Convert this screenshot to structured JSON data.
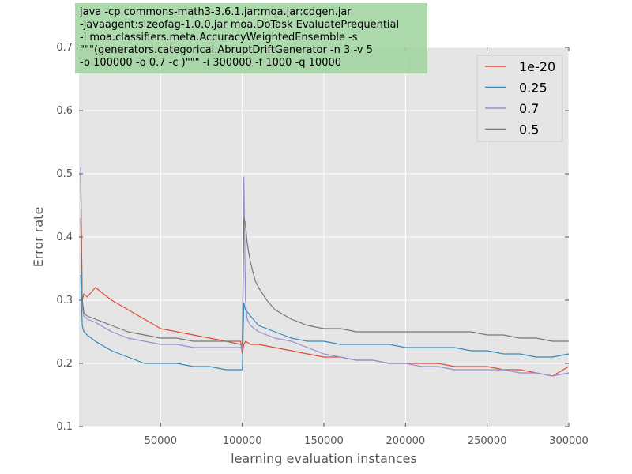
{
  "chart_data": {
    "type": "line",
    "xlabel": "learning evaluation instances",
    "ylabel": "Error rate",
    "xlim": [
      0,
      300000
    ],
    "ylim": [
      0.1,
      0.7
    ],
    "xticks": [
      50000,
      100000,
      150000,
      200000,
      250000,
      300000
    ],
    "yticks": [
      0.1,
      0.2,
      0.3,
      0.4,
      0.5,
      0.6,
      0.7
    ],
    "grid": true,
    "legend_position": "top-right",
    "annotation": [
      "java -cp commons-math3-3.6.1.jar:moa.jar:cdgen.jar",
      "-javaagent:sizeofag-1.0.0.jar moa.DoTask EvaluatePrequential",
      "-l moa.classifiers.meta.AccuracyWeightedEnsemble  -s",
      "\"\"\"(generators.categorical.AbruptDriftGenerator  -n 3 -v 5",
      "-b 100000  -o 0.7  -c  )\"\"\"   -i 300000  -f 1000 -q 10000"
    ],
    "colors": {
      "background": "#e5e5e5",
      "grid": "#ffffff",
      "annotation_box": "#9fd49f"
    },
    "series": [
      {
        "name": "1e-20",
        "color": "#e24a33",
        "x": [
          1000,
          2000,
          3000,
          5000,
          10000,
          15000,
          20000,
          30000,
          40000,
          50000,
          60000,
          70000,
          80000,
          90000,
          99000,
          100000,
          101000,
          102000,
          105000,
          110000,
          120000,
          130000,
          140000,
          150000,
          160000,
          170000,
          180000,
          190000,
          200000,
          210000,
          220000,
          230000,
          240000,
          250000,
          260000,
          270000,
          280000,
          290000,
          300000
        ],
        "y": [
          0.43,
          0.3,
          0.31,
          0.305,
          0.32,
          0.31,
          0.3,
          0.285,
          0.27,
          0.255,
          0.25,
          0.245,
          0.24,
          0.235,
          0.235,
          0.215,
          0.23,
          0.235,
          0.23,
          0.23,
          0.225,
          0.22,
          0.215,
          0.21,
          0.21,
          0.205,
          0.205,
          0.2,
          0.2,
          0.2,
          0.2,
          0.195,
          0.195,
          0.195,
          0.19,
          0.19,
          0.185,
          0.18,
          0.195
        ]
      },
      {
        "name": "0.25",
        "color": "#348abd",
        "x": [
          1000,
          2000,
          3000,
          5000,
          10000,
          20000,
          30000,
          40000,
          50000,
          60000,
          70000,
          80000,
          90000,
          99000,
          100000,
          101000,
          102000,
          105000,
          110000,
          120000,
          130000,
          140000,
          150000,
          160000,
          170000,
          180000,
          190000,
          200000,
          210000,
          220000,
          230000,
          240000,
          250000,
          260000,
          270000,
          280000,
          290000,
          300000
        ],
        "y": [
          0.34,
          0.26,
          0.25,
          0.245,
          0.235,
          0.22,
          0.21,
          0.2,
          0.2,
          0.2,
          0.195,
          0.195,
          0.19,
          0.19,
          0.19,
          0.295,
          0.285,
          0.275,
          0.26,
          0.25,
          0.24,
          0.235,
          0.235,
          0.23,
          0.23,
          0.23,
          0.23,
          0.225,
          0.225,
          0.225,
          0.225,
          0.22,
          0.22,
          0.215,
          0.215,
          0.21,
          0.21,
          0.215
        ]
      },
      {
        "name": "0.7",
        "color": "#988ed5",
        "x": [
          1000,
          2000,
          3000,
          5000,
          10000,
          20000,
          30000,
          40000,
          50000,
          60000,
          70000,
          80000,
          90000,
          99000,
          100000,
          101000,
          102000,
          103000,
          105000,
          110000,
          120000,
          130000,
          140000,
          150000,
          160000,
          170000,
          180000,
          190000,
          200000,
          210000,
          220000,
          230000,
          240000,
          250000,
          260000,
          270000,
          280000,
          290000,
          300000
        ],
        "y": [
          0.51,
          0.29,
          0.275,
          0.27,
          0.265,
          0.25,
          0.24,
          0.235,
          0.23,
          0.23,
          0.225,
          0.225,
          0.225,
          0.225,
          0.225,
          0.495,
          0.3,
          0.27,
          0.26,
          0.25,
          0.24,
          0.235,
          0.225,
          0.215,
          0.21,
          0.205,
          0.205,
          0.2,
          0.2,
          0.195,
          0.195,
          0.19,
          0.19,
          0.19,
          0.19,
          0.185,
          0.185,
          0.18,
          0.185
        ]
      },
      {
        "name": "0.5",
        "color": "#777777",
        "x": [
          1000,
          2000,
          3000,
          5000,
          10000,
          20000,
          30000,
          40000,
          50000,
          60000,
          70000,
          80000,
          90000,
          99000,
          100000,
          101000,
          102000,
          103000,
          105000,
          108000,
          110000,
          115000,
          120000,
          130000,
          140000,
          150000,
          160000,
          170000,
          180000,
          190000,
          200000,
          210000,
          220000,
          230000,
          240000,
          250000,
          260000,
          270000,
          280000,
          290000,
          300000
        ],
        "y": [
          0.5,
          0.3,
          0.28,
          0.275,
          0.27,
          0.26,
          0.25,
          0.245,
          0.24,
          0.24,
          0.235,
          0.235,
          0.235,
          0.23,
          0.23,
          0.43,
          0.42,
          0.39,
          0.36,
          0.33,
          0.32,
          0.3,
          0.285,
          0.27,
          0.26,
          0.255,
          0.255,
          0.25,
          0.25,
          0.25,
          0.25,
          0.25,
          0.25,
          0.25,
          0.25,
          0.245,
          0.245,
          0.24,
          0.24,
          0.235,
          0.235
        ]
      }
    ]
  }
}
